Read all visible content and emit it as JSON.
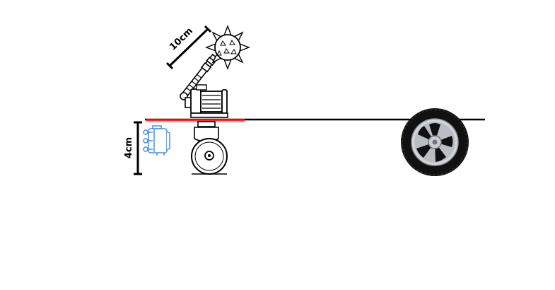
{
  "labels": {
    "weapon_length": "10cm",
    "clearance_height": "4cm"
  },
  "colors": {
    "line": "#000000",
    "laser": "#ff2a2a",
    "laser_glow": "#ff9a9a",
    "switch_outline": "#4a90d9",
    "tire": "#111111",
    "rim": "#b9bec4"
  },
  "icons": {
    "weapon": "spiked-mace-icon",
    "motor": "electric-motor-icon",
    "caster": "caster-wheel-icon",
    "switch": "limit-switch-icon",
    "wheel": "car-tire-icon"
  }
}
